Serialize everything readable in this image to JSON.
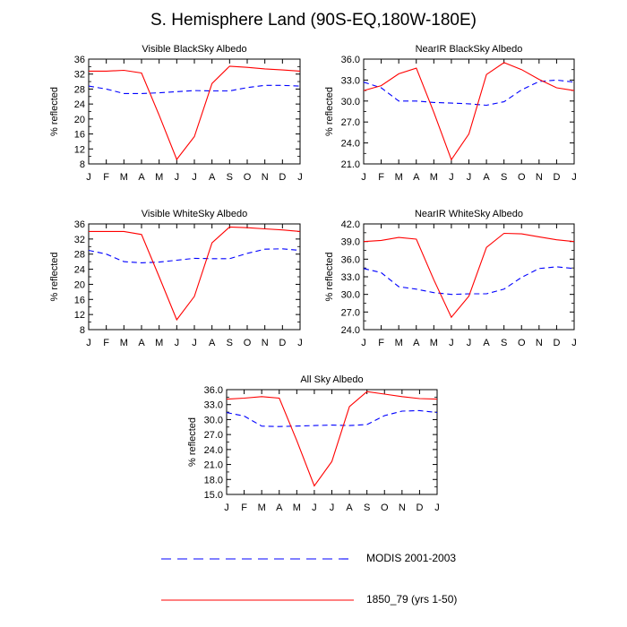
{
  "title": "S. Hemisphere Land (90S-EQ,180W-180E)",
  "colors": {
    "modis": "#0000ff",
    "model": "#ff0000",
    "axis": "#000000"
  },
  "legend": {
    "modis_label": "MODIS 2001-2003",
    "model_label": "1850_79 (yrs 1-50)"
  },
  "chart_data": [
    {
      "type": "line",
      "title": "Visible BlackSky Albedo",
      "xlabel": "",
      "ylabel": "% reflected",
      "categories": [
        "J",
        "F",
        "M",
        "A",
        "M",
        "J",
        "J",
        "A",
        "S",
        "O",
        "N",
        "D",
        "J"
      ],
      "ylim": [
        8,
        36
      ],
      "yticks": [
        "8",
        "12",
        "16",
        "20",
        "24",
        "28",
        "32",
        "36"
      ],
      "series": [
        {
          "name": "MODIS 2001-2003",
          "style": "dashed",
          "values": [
            28.8,
            28.0,
            26.8,
            26.8,
            27.0,
            27.3,
            27.6,
            27.5,
            27.5,
            28.4,
            29.0,
            29.0,
            28.8
          ]
        },
        {
          "name": "1850_79 (yrs 1-50)",
          "style": "solid",
          "values": [
            32.8,
            32.8,
            33.0,
            32.3,
            21.0,
            9.2,
            15.3,
            29.5,
            34.1,
            33.8,
            33.4,
            33.1,
            32.8
          ]
        }
      ]
    },
    {
      "type": "line",
      "title": "NearIR BlackSky Albedo",
      "xlabel": "",
      "ylabel": "% reflected",
      "categories": [
        "J",
        "F",
        "M",
        "A",
        "M",
        "J",
        "J",
        "A",
        "S",
        "O",
        "N",
        "D",
        "J"
      ],
      "ylim": [
        21,
        36
      ],
      "yticks": [
        "21.0",
        "24.0",
        "27.0",
        "30.0",
        "33.0",
        "36.0"
      ],
      "series": [
        {
          "name": "MODIS 2001-2003",
          "style": "dashed",
          "values": [
            32.7,
            31.9,
            30.0,
            30.0,
            29.8,
            29.7,
            29.6,
            29.4,
            29.9,
            31.6,
            32.8,
            33.0,
            32.7
          ]
        },
        {
          "name": "1850_79 (yrs 1-50)",
          "style": "solid",
          "values": [
            31.5,
            32.2,
            33.9,
            34.7,
            28.4,
            21.6,
            25.3,
            33.8,
            35.5,
            34.5,
            33.1,
            31.9,
            31.5
          ]
        }
      ]
    },
    {
      "type": "line",
      "title": "Visible WhiteSky Albedo",
      "xlabel": "",
      "ylabel": "% reflected",
      "categories": [
        "J",
        "F",
        "M",
        "A",
        "M",
        "J",
        "J",
        "A",
        "S",
        "O",
        "N",
        "D",
        "J"
      ],
      "ylim": [
        8,
        36
      ],
      "yticks": [
        "8",
        "12",
        "16",
        "20",
        "24",
        "28",
        "32",
        "36"
      ],
      "series": [
        {
          "name": "MODIS 2001-2003",
          "style": "dashed",
          "values": [
            29.0,
            28.0,
            26.0,
            25.7,
            25.9,
            26.4,
            26.9,
            26.8,
            26.8,
            28.2,
            29.3,
            29.4,
            29.0
          ]
        },
        {
          "name": "1850_79 (yrs 1-50)",
          "style": "solid",
          "values": [
            34.0,
            34.0,
            34.0,
            33.2,
            22.0,
            10.6,
            16.8,
            31.0,
            35.2,
            35.0,
            34.7,
            34.4,
            34.0
          ]
        }
      ]
    },
    {
      "type": "line",
      "title": "NearIR WhiteSky Albedo",
      "xlabel": "",
      "ylabel": "% reflected",
      "categories": [
        "J",
        "F",
        "M",
        "A",
        "M",
        "J",
        "J",
        "A",
        "S",
        "O",
        "N",
        "D",
        "J"
      ],
      "ylim": [
        24,
        42
      ],
      "yticks": [
        "24.0",
        "27.0",
        "30.0",
        "33.0",
        "36.0",
        "39.0",
        "42.0"
      ],
      "series": [
        {
          "name": "MODIS 2001-2003",
          "style": "dashed",
          "values": [
            34.4,
            33.7,
            31.3,
            30.9,
            30.3,
            30.0,
            30.1,
            30.1,
            30.9,
            32.9,
            34.4,
            34.7,
            34.4
          ]
        },
        {
          "name": "1850_79 (yrs 1-50)",
          "style": "solid",
          "values": [
            39.0,
            39.2,
            39.7,
            39.4,
            32.5,
            26.1,
            29.7,
            38.0,
            40.4,
            40.3,
            39.8,
            39.3,
            39.0
          ]
        }
      ]
    },
    {
      "type": "line",
      "title": "All Sky Albedo",
      "xlabel": "",
      "ylabel": "% reflected",
      "categories": [
        "J",
        "F",
        "M",
        "A",
        "M",
        "J",
        "J",
        "A",
        "S",
        "O",
        "N",
        "D",
        "J"
      ],
      "ylim": [
        15,
        36
      ],
      "yticks": [
        "15.0",
        "18.0",
        "21.0",
        "24.0",
        "27.0",
        "30.0",
        "33.0",
        "36.0"
      ],
      "series": [
        {
          "name": "MODIS 2001-2003",
          "style": "dashed",
          "values": [
            31.4,
            30.7,
            28.7,
            28.6,
            28.7,
            28.8,
            28.9,
            28.8,
            29.0,
            30.8,
            31.7,
            31.8,
            31.4
          ]
        },
        {
          "name": "1850_79 (yrs 1-50)",
          "style": "solid",
          "values": [
            34.1,
            34.3,
            34.6,
            34.3,
            25.8,
            16.7,
            21.6,
            32.6,
            35.6,
            35.1,
            34.6,
            34.2,
            34.1
          ]
        }
      ]
    }
  ]
}
